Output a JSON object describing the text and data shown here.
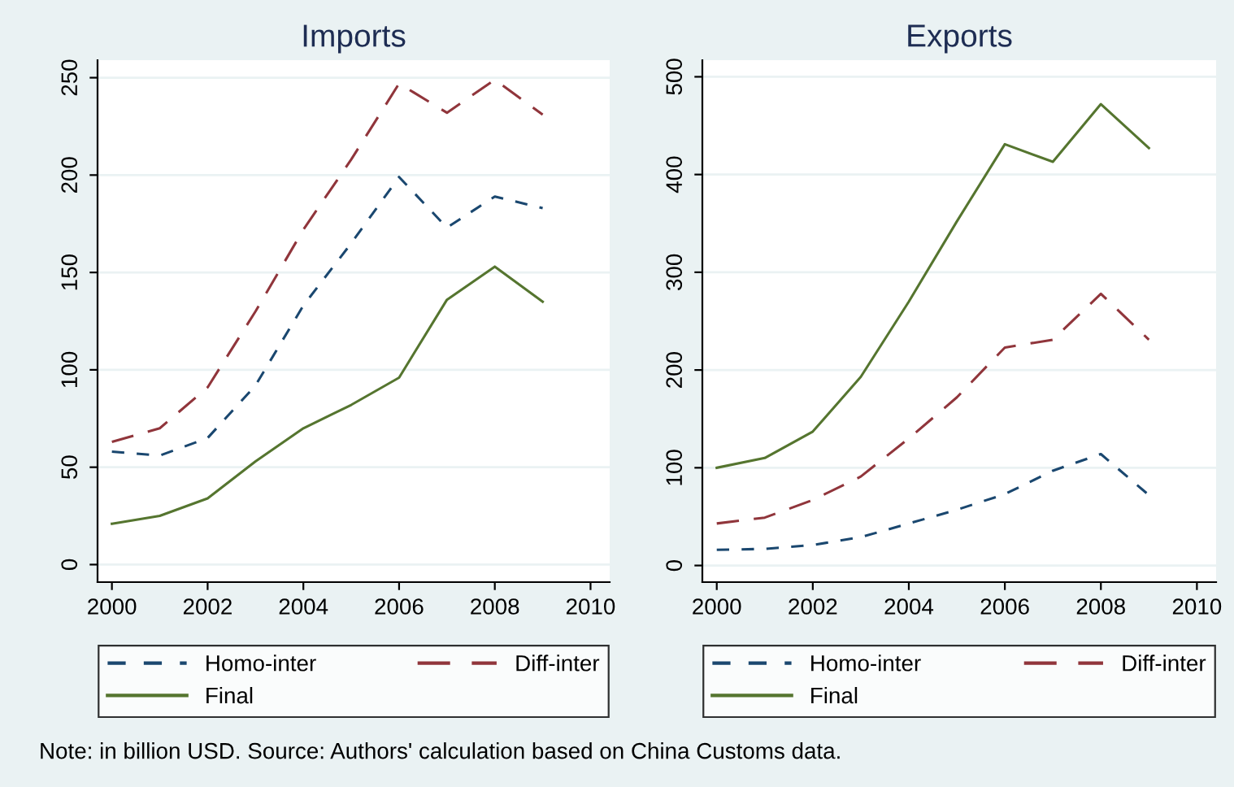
{
  "chart_data": [
    {
      "type": "line",
      "title": "Imports",
      "x": [
        2000,
        2001,
        2002,
        2003,
        2004,
        2005,
        2006,
        2007,
        2008,
        2009
      ],
      "xlim": [
        1999.7,
        2010.4
      ],
      "xticks": [
        2000,
        2002,
        2004,
        2006,
        2008,
        2010
      ],
      "ylim": [
        -9,
        259
      ],
      "yticks": [
        0,
        50,
        100,
        150,
        200,
        250
      ],
      "grid": "y",
      "legend": "bottom",
      "series": [
        {
          "name": "Homo-inter",
          "color": "#1a476f",
          "line_style": "dashed",
          "values": [
            58,
            56,
            65,
            92,
            133,
            165,
            199,
            173,
            189,
            183
          ]
        },
        {
          "name": "Diff-inter",
          "color": "#90353b",
          "line_style": "dashed",
          "values": [
            63,
            70,
            91,
            130,
            172,
            208,
            247,
            232,
            249,
            231
          ]
        },
        {
          "name": "Final",
          "color": "#55752f",
          "line_style": "solid",
          "values": [
            21,
            25,
            34,
            53,
            70,
            82,
            96,
            136,
            153,
            135
          ]
        }
      ],
      "annotations": [
        "Note: in billion USD. Source: Authors' calculation based on China Customs data."
      ]
    },
    {
      "type": "line",
      "title": "Exports",
      "x": [
        2000,
        2001,
        2002,
        2003,
        2004,
        2005,
        2006,
        2007,
        2008,
        2009
      ],
      "xlim": [
        1999.7,
        2010.4
      ],
      "xticks": [
        2000,
        2002,
        2004,
        2006,
        2008,
        2010
      ],
      "ylim": [
        -17,
        517
      ],
      "yticks": [
        0,
        100,
        200,
        300,
        400,
        500
      ],
      "grid": "y",
      "legend": "bottom",
      "series": [
        {
          "name": "Homo-inter",
          "color": "#1a476f",
          "line_style": "dashed",
          "values": [
            16,
            17,
            21,
            29,
            43,
            57,
            73,
            97,
            114,
            72
          ]
        },
        {
          "name": "Diff-inter",
          "color": "#90353b",
          "line_style": "dashed",
          "values": [
            43,
            49,
            67,
            91,
            130,
            172,
            223,
            231,
            278,
            231
          ]
        },
        {
          "name": "Final",
          "color": "#55752f",
          "line_style": "solid",
          "values": [
            100,
            110,
            137,
            193,
            270,
            352,
            431,
            413,
            472,
            427
          ]
        }
      ]
    }
  ]
}
